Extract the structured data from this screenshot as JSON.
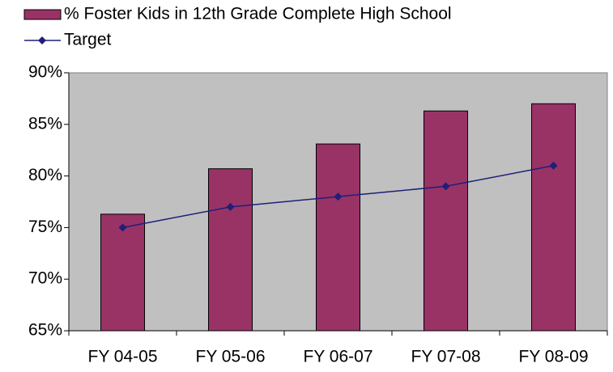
{
  "chart_data": {
    "type": "bar",
    "categories": [
      "FY 04-05",
      "FY 05-06",
      "FY 06-07",
      "FY 07-08",
      "FY 08-09"
    ],
    "series": [
      {
        "name": "% Foster Kids in 12th Grade Complete High School",
        "type": "bar",
        "color": "#993366",
        "values": [
          76.3,
          80.7,
          83.1,
          86.3,
          87.0
        ]
      },
      {
        "name": "Target",
        "type": "line",
        "color": "#1f1f7a",
        "values": [
          75,
          77,
          78,
          79,
          81
        ]
      }
    ],
    "ylim": [
      65,
      90
    ],
    "yticks": [
      {
        "value": 65,
        "label": "65%"
      },
      {
        "value": 70,
        "label": "70%"
      },
      {
        "value": 75,
        "label": "75%"
      },
      {
        "value": 80,
        "label": "80%"
      },
      {
        "value": 85,
        "label": "85%"
      },
      {
        "value": 90,
        "label": "90%"
      }
    ],
    "grid": false,
    "background": "#c0c0c0"
  }
}
